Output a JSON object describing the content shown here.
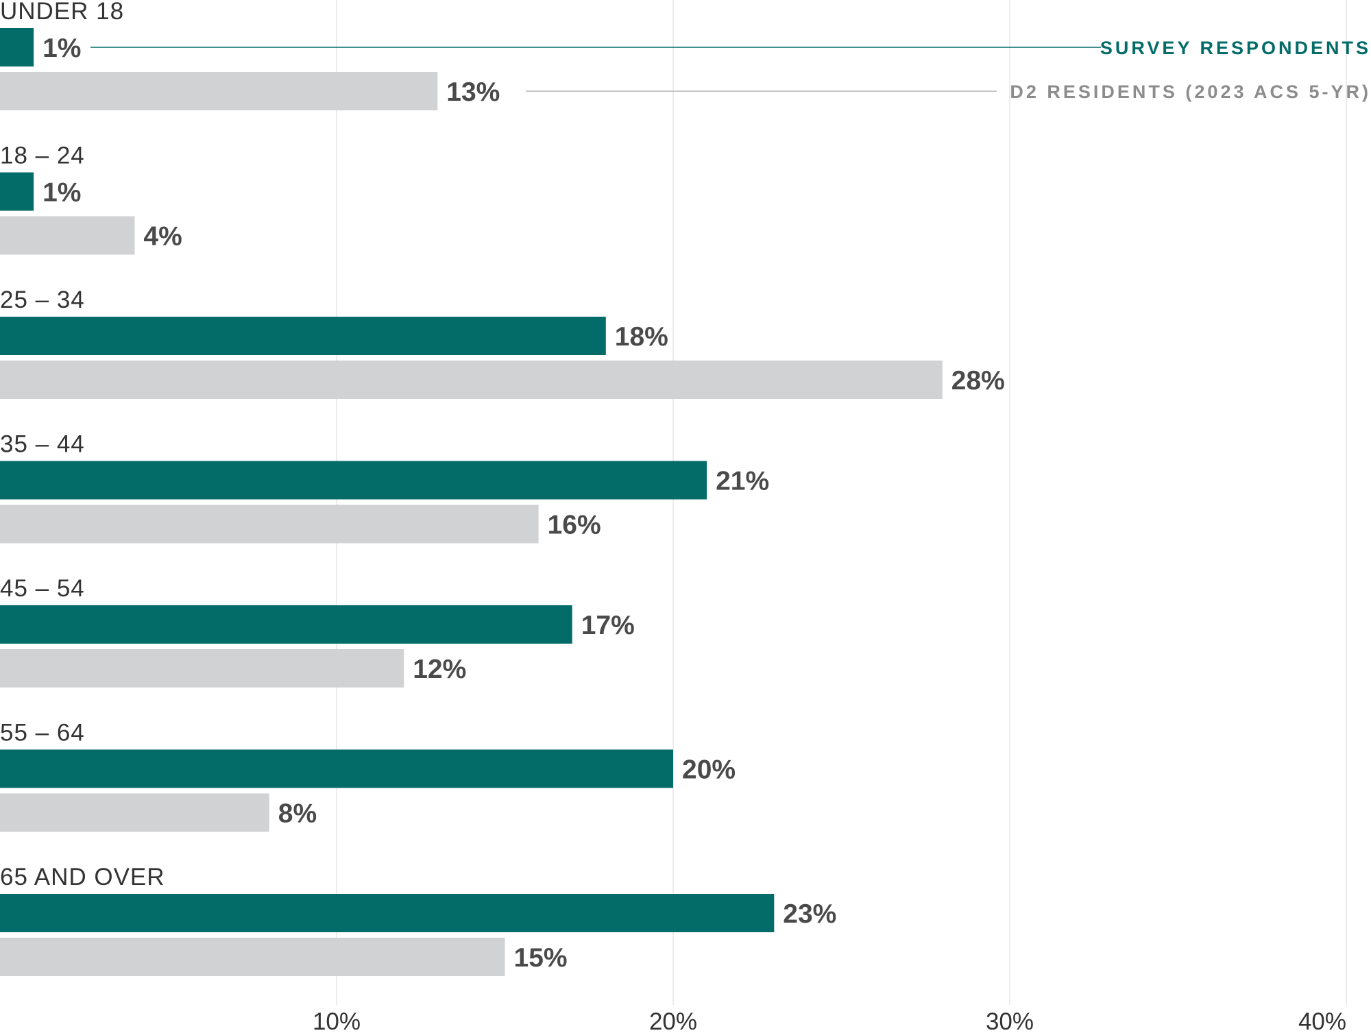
{
  "chart_data": {
    "type": "bar",
    "orientation": "horizontal",
    "categories": [
      "UNDER 18",
      "18 – 24",
      "25 – 34",
      "35 – 44",
      "45 – 54",
      "55 – 64",
      "65 AND OVER"
    ],
    "series": [
      {
        "name": "SURVEY RESPONDENTS",
        "color": "#036b68",
        "values": [
          1,
          1,
          18,
          21,
          17,
          20,
          23
        ],
        "labels": [
          "1%",
          "1%",
          "18%",
          "21%",
          "17%",
          "20%",
          "23%"
        ]
      },
      {
        "name": "D2 RESIDENTS (2023 ACS 5-YR)",
        "color": "#d1d2d4",
        "values": [
          13,
          4,
          28,
          16,
          12,
          8,
          15
        ],
        "labels": [
          "13%",
          "4%",
          "28%",
          "16%",
          "12%",
          "8%",
          "15%"
        ]
      }
    ],
    "xlim": [
      0,
      40
    ],
    "xticks": [
      10,
      20,
      30,
      40
    ],
    "xtick_labels": [
      "10%",
      "20%",
      "30%",
      "40%"
    ],
    "grid": true,
    "legend_placement": "top-right, inline with first category bars",
    "title": "",
    "xlabel": "",
    "ylabel": ""
  },
  "colors": {
    "gridline": "#e6e6e6",
    "legend_secondary_text": "#8c8c8c",
    "value_label": "#4a4a4a"
  }
}
